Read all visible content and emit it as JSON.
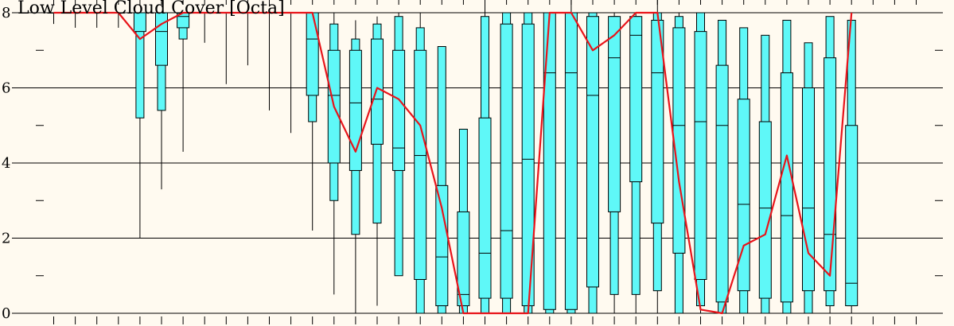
{
  "chart_data": {
    "type": "box",
    "title": "Low Level Cloud Cover [Octa]",
    "ylim": [
      0,
      8
    ],
    "yticks": [
      0,
      2,
      4,
      6,
      8
    ],
    "grid": true,
    "legend": "none",
    "colors": {
      "box_fill": "#5ff8f8",
      "box_stroke": "#000000",
      "line": "#e8141a",
      "background": "#fffaf0"
    },
    "x": [
      0,
      1,
      2,
      3,
      4,
      5,
      6,
      7,
      8,
      9,
      10,
      11,
      12,
      13,
      14,
      15,
      16,
      17,
      18,
      19,
      20,
      21,
      22,
      23,
      24,
      25,
      26,
      27,
      28,
      29,
      30,
      31,
      32,
      33,
      34,
      35,
      36,
      37,
      38,
      39,
      40
    ],
    "boxes": [
      {
        "x": 0,
        "min": 7.7,
        "q10": 8,
        "q25": 8,
        "median": 8,
        "q75": 8,
        "q90": 8,
        "max": 8
      },
      {
        "x": 1,
        "min": 7.6,
        "q10": 8,
        "q25": 8,
        "median": 8,
        "q75": 8,
        "q90": 8,
        "max": 8
      },
      {
        "x": 2,
        "min": 7.6,
        "q10": 8,
        "q25": 8,
        "median": 8,
        "q75": 8,
        "q90": 8,
        "max": 8
      },
      {
        "x": 3,
        "min": 7.6,
        "q10": 8,
        "q25": 8,
        "median": 8,
        "q75": 8,
        "q90": 8,
        "max": 8
      },
      {
        "x": 4,
        "min": 2.0,
        "q10": 5.2,
        "q25": 7.5,
        "median": 8,
        "q75": 8,
        "q90": 8,
        "max": 8
      },
      {
        "x": 5,
        "min": 3.3,
        "q10": 5.4,
        "q25": 6.6,
        "median": 7.5,
        "q75": 8,
        "q90": 8,
        "max": 8
      },
      {
        "x": 6,
        "min": 4.3,
        "q10": 7.3,
        "q25": 7.6,
        "median": 7.9,
        "q75": 8,
        "q90": 8,
        "max": 8
      },
      {
        "x": 7,
        "min": 7.2,
        "q10": 8,
        "q25": 8,
        "median": 8,
        "q75": 8,
        "q90": 8,
        "max": 8
      },
      {
        "x": 8,
        "min": 6.1,
        "q10": 8,
        "q25": 8,
        "median": 8,
        "q75": 8,
        "q90": 8,
        "max": 8
      },
      {
        "x": 9,
        "min": 6.6,
        "q10": 8,
        "q25": 8,
        "median": 8,
        "q75": 8,
        "q90": 8,
        "max": 8
      },
      {
        "x": 10,
        "min": 5.4,
        "q10": 8,
        "q25": 8,
        "median": 8,
        "q75": 8,
        "q90": 8,
        "max": 8
      },
      {
        "x": 11,
        "min": 4.8,
        "q10": 8,
        "q25": 8,
        "median": 8,
        "q75": 8,
        "q90": 8,
        "max": 8
      },
      {
        "x": 12,
        "min": 2.2,
        "q10": 5.1,
        "q25": 5.8,
        "median": 7.3,
        "q75": 8,
        "q90": 8,
        "max": 8
      },
      {
        "x": 13,
        "min": 0.5,
        "q10": 3.0,
        "q25": 4.0,
        "median": 5.8,
        "q75": 7.0,
        "q90": 7.7,
        "max": 8
      },
      {
        "x": 14,
        "min": 0,
        "q10": 2.1,
        "q25": 3.8,
        "median": 5.6,
        "q75": 7.0,
        "q90": 7.3,
        "max": 7.8
      },
      {
        "x": 15,
        "min": 0.2,
        "q10": 2.4,
        "q25": 4.5,
        "median": 5.7,
        "q75": 7.3,
        "q90": 7.7,
        "max": 7.9
      },
      {
        "x": 16,
        "min": 1.0,
        "q10": 1.0,
        "q25": 3.8,
        "median": 4.4,
        "q75": 7.0,
        "q90": 7.9,
        "max": 8
      },
      {
        "x": 17,
        "min": 0,
        "q10": 0,
        "q25": 0.9,
        "median": 4.2,
        "q75": 7.0,
        "q90": 7.6,
        "max": 8
      },
      {
        "x": 18,
        "min": 0,
        "q10": 0,
        "q25": 0.2,
        "median": 1.5,
        "q75": 3.4,
        "q90": 7.1,
        "max": 7.1
      },
      {
        "x": 19,
        "min": 0,
        "q10": 0,
        "q25": 0.2,
        "median": 0.5,
        "q75": 2.7,
        "q90": 4.9,
        "max": 4.9
      },
      {
        "x": 20,
        "min": 0,
        "q10": 0,
        "q25": 0.4,
        "median": 1.6,
        "q75": 5.2,
        "q90": 7.9,
        "max": 8
      },
      {
        "x": 21,
        "min": 0,
        "q10": 0,
        "q25": 0.4,
        "median": 2.2,
        "q75": 7.7,
        "q90": 8,
        "max": 8
      },
      {
        "x": 22,
        "min": 0,
        "q10": 0,
        "q25": 0.2,
        "median": 4.1,
        "q75": 7.7,
        "q90": 8,
        "max": 8
      },
      {
        "x": 23,
        "min": 0,
        "q10": 0,
        "q25": 0.1,
        "median": 6.4,
        "q75": 8,
        "q90": 8,
        "max": 8
      },
      {
        "x": 24,
        "min": 0,
        "q10": 0,
        "q25": 0.1,
        "median": 6.4,
        "q75": 8,
        "q90": 8,
        "max": 8
      },
      {
        "x": 25,
        "min": 0,
        "q10": 0,
        "q25": 0.7,
        "median": 5.8,
        "q75": 7.9,
        "q90": 8,
        "max": 8
      },
      {
        "x": 26,
        "min": 0,
        "q10": 0.5,
        "q25": 2.7,
        "median": 6.8,
        "q75": 7.9,
        "q90": 7.9,
        "max": 8
      },
      {
        "x": 27,
        "min": 0,
        "q10": 0.5,
        "q25": 3.5,
        "median": 7.4,
        "q75": 7.9,
        "q90": 7.9,
        "max": 8
      },
      {
        "x": 28,
        "min": 0,
        "q10": 0.6,
        "q25": 2.4,
        "median": 6.4,
        "q75": 7.8,
        "q90": 8,
        "max": 8
      },
      {
        "x": 29,
        "min": 0,
        "q10": 0,
        "q25": 1.6,
        "median": 5.0,
        "q75": 7.6,
        "q90": 7.9,
        "max": 8
      },
      {
        "x": 30,
        "min": 0,
        "q10": 0.2,
        "q25": 0.9,
        "median": 5.1,
        "q75": 7.5,
        "q90": 8,
        "max": 8
      },
      {
        "x": 31,
        "min": 0,
        "q10": 0,
        "q25": 0.3,
        "median": 5.0,
        "q75": 6.6,
        "q90": 7.8,
        "max": 7.8
      },
      {
        "x": 32,
        "min": 0,
        "q10": 0,
        "q25": 0.6,
        "median": 2.9,
        "q75": 5.7,
        "q90": 7.6,
        "max": 7.6
      },
      {
        "x": 33,
        "min": 0,
        "q10": 0,
        "q25": 0.4,
        "median": 2.8,
        "q75": 5.1,
        "q90": 7.4,
        "max": 7.4
      },
      {
        "x": 34,
        "min": 0,
        "q10": 0,
        "q25": 0.3,
        "median": 2.6,
        "q75": 6.4,
        "q90": 7.8,
        "max": 7.8
      },
      {
        "x": 35,
        "min": 0,
        "q10": 0,
        "q25": 0.6,
        "median": 2.8,
        "q75": 6.0,
        "q90": 7.2,
        "max": 7.2
      },
      {
        "x": 36,
        "min": 0,
        "q10": 0.2,
        "q25": 0.6,
        "median": 2.1,
        "q75": 6.8,
        "q90": 7.9,
        "max": 7.9
      },
      {
        "x": 37,
        "min": 0,
        "q10": 0.2,
        "q25": 0.2,
        "median": 0.8,
        "q75": 5.0,
        "q90": 7.8,
        "max": 7.8
      }
    ],
    "line": [
      {
        "x": 0,
        "y": 8
      },
      {
        "x": 1,
        "y": 8
      },
      {
        "x": 2,
        "y": 8
      },
      {
        "x": 3,
        "y": 8
      },
      {
        "x": 4,
        "y": 7.3
      },
      {
        "x": 5,
        "y": 7.7
      },
      {
        "x": 6,
        "y": 8
      },
      {
        "x": 7,
        "y": 8
      },
      {
        "x": 8,
        "y": 8
      },
      {
        "x": 9,
        "y": 8
      },
      {
        "x": 10,
        "y": 8
      },
      {
        "x": 11,
        "y": 8
      },
      {
        "x": 12,
        "y": 8
      },
      {
        "x": 13,
        "y": 5.5
      },
      {
        "x": 14,
        "y": 4.3
      },
      {
        "x": 15,
        "y": 6.0
      },
      {
        "x": 16,
        "y": 5.7
      },
      {
        "x": 17,
        "y": 5.0
      },
      {
        "x": 18,
        "y": 2.8
      },
      {
        "x": 19,
        "y": 0
      },
      {
        "x": 20,
        "y": 0
      },
      {
        "x": 21,
        "y": 0
      },
      {
        "x": 22,
        "y": 0
      },
      {
        "x": 23,
        "y": 8
      },
      {
        "x": 24,
        "y": 8
      },
      {
        "x": 25,
        "y": 7.0
      },
      {
        "x": 26,
        "y": 7.4
      },
      {
        "x": 27,
        "y": 8
      },
      {
        "x": 28,
        "y": 8
      },
      {
        "x": 29,
        "y": 3.5
      },
      {
        "x": 30,
        "y": 0.1
      },
      {
        "x": 31,
        "y": 0
      },
      {
        "x": 32,
        "y": 1.8
      },
      {
        "x": 33,
        "y": 2.1
      },
      {
        "x": 34,
        "y": 4.2
      },
      {
        "x": 35,
        "y": 1.6
      },
      {
        "x": 36,
        "y": 1.0
      },
      {
        "x": 37,
        "y": 8
      }
    ]
  }
}
